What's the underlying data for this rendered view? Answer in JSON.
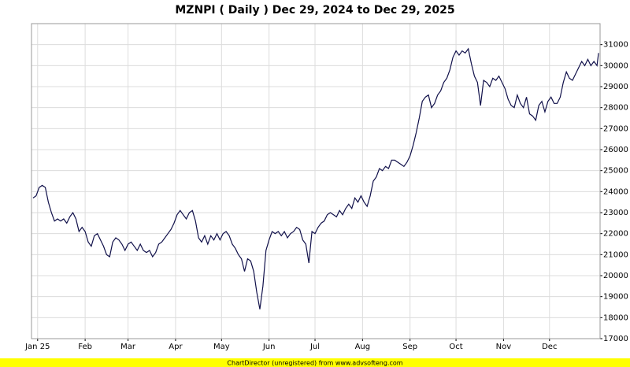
{
  "chart_data": {
    "type": "line",
    "title": "MZNPI ( Daily ) Dec 29, 2024 to Dec 29, 2025",
    "x": [
      -3,
      -1,
      1,
      3,
      5,
      7,
      9,
      11,
      13,
      15,
      17,
      19,
      21,
      23,
      25,
      27,
      29,
      31,
      33,
      35,
      37,
      39,
      41,
      43,
      45,
      47,
      49,
      51,
      53,
      55,
      57,
      59,
      61,
      63,
      65,
      67,
      69,
      71,
      73,
      75,
      77,
      79,
      81,
      83,
      85,
      87,
      89,
      91,
      93,
      95,
      97,
      99,
      101,
      103,
      105,
      107,
      109,
      111,
      113,
      115,
      117,
      119,
      121,
      123,
      125,
      127,
      129,
      131,
      133,
      135,
      137,
      139,
      141,
      143,
      145,
      147,
      149,
      151,
      153,
      155,
      157,
      159,
      161,
      163,
      165,
      167,
      169,
      171,
      173,
      175,
      177,
      179,
      181,
      183,
      185,
      187,
      189,
      191,
      193,
      195,
      197,
      199,
      201,
      203,
      205,
      207,
      209,
      211,
      213,
      215,
      217,
      219,
      221,
      223,
      225,
      227,
      229,
      231,
      233,
      235,
      237,
      239,
      241,
      243,
      245,
      247,
      249,
      251,
      253,
      255,
      257,
      259,
      261,
      263,
      265,
      267,
      269,
      271,
      273,
      275,
      277,
      279,
      281,
      283,
      285,
      287,
      289,
      291,
      293,
      295,
      297,
      299,
      301,
      303,
      305,
      307,
      309,
      311,
      313,
      315,
      317,
      319,
      321,
      323,
      325,
      327,
      329,
      331,
      333,
      335,
      337,
      339,
      341,
      343,
      345,
      347,
      349,
      351,
      353,
      355,
      357,
      359,
      361,
      363,
      365,
      366
    ],
    "series": [
      {
        "name": "MZNPI",
        "color": "#10104a",
        "values": [
          23700,
          23800,
          24200,
          24300,
          24200,
          23500,
          23000,
          22600,
          22700,
          22600,
          22700,
          22500,
          22800,
          23000,
          22700,
          22100,
          22300,
          22100,
          21600,
          21400,
          21900,
          22000,
          21700,
          21400,
          21000,
          20900,
          21600,
          21800,
          21700,
          21500,
          21200,
          21500,
          21600,
          21400,
          21200,
          21500,
          21200,
          21100,
          21200,
          20900,
          21100,
          21500,
          21600,
          21800,
          22000,
          22200,
          22500,
          22900,
          23100,
          22900,
          22700,
          23000,
          23100,
          22600,
          21800,
          21600,
          21900,
          21500,
          21900,
          21700,
          22000,
          21700,
          22000,
          22100,
          21900,
          21500,
          21300,
          21000,
          20800,
          20200,
          20800,
          20700,
          20200,
          19200,
          18400,
          19500,
          21200,
          21700,
          22100,
          22000,
          22100,
          21900,
          22100,
          21800,
          22000,
          22100,
          22300,
          22200,
          21700,
          21500,
          20600,
          22100,
          22000,
          22300,
          22500,
          22600,
          22900,
          23000,
          22900,
          22800,
          23100,
          22900,
          23200,
          23400,
          23200,
          23700,
          23500,
          23800,
          23500,
          23300,
          23800,
          24500,
          24700,
          25100,
          25000,
          25200,
          25100,
          25500,
          25500,
          25400,
          25300,
          25200,
          25400,
          25700,
          26200,
          26800,
          27500,
          28300,
          28500,
          28600,
          28000,
          28200,
          28600,
          28800,
          29200,
          29400,
          29800,
          30400,
          30700,
          30500,
          30700,
          30600,
          30800,
          30100,
          29500,
          29200,
          28100,
          29300,
          29200,
          29000,
          29400,
          29300,
          29500,
          29200,
          28900,
          28400,
          28100,
          28000,
          28600,
          28200,
          28000,
          28500,
          27700,
          27600,
          27400,
          28100,
          28300,
          27800,
          28300,
          28500,
          28200,
          28200,
          28500,
          29200,
          29700,
          29400,
          29300,
          29600,
          29900,
          30200,
          30000,
          30300,
          30000,
          30200,
          30000,
          30600
        ]
      }
    ],
    "xlim": [
      -4,
      367
    ],
    "xticks": [
      {
        "value": 0,
        "label": "Jan 25"
      },
      {
        "value": 31,
        "label": "Feb"
      },
      {
        "value": 59,
        "label": "Mar"
      },
      {
        "value": 90,
        "label": "Apr"
      },
      {
        "value": 120,
        "label": "May"
      },
      {
        "value": 151,
        "label": "Jun"
      },
      {
        "value": 181,
        "label": "Jul"
      },
      {
        "value": 212,
        "label": "Aug"
      },
      {
        "value": 243,
        "label": "Sep"
      },
      {
        "value": 273,
        "label": "Oct"
      },
      {
        "value": 304,
        "label": "Nov"
      },
      {
        "value": 334,
        "label": "Dec"
      }
    ],
    "ylim": [
      17000,
      32000
    ],
    "yticks": [
      17000,
      18000,
      19000,
      20000,
      21000,
      22000,
      23000,
      24000,
      25000,
      26000,
      27000,
      28000,
      29000,
      30000,
      31000
    ],
    "grid": true,
    "footer": "ChartDirector (unregistered) from www.advsofteng.com"
  }
}
